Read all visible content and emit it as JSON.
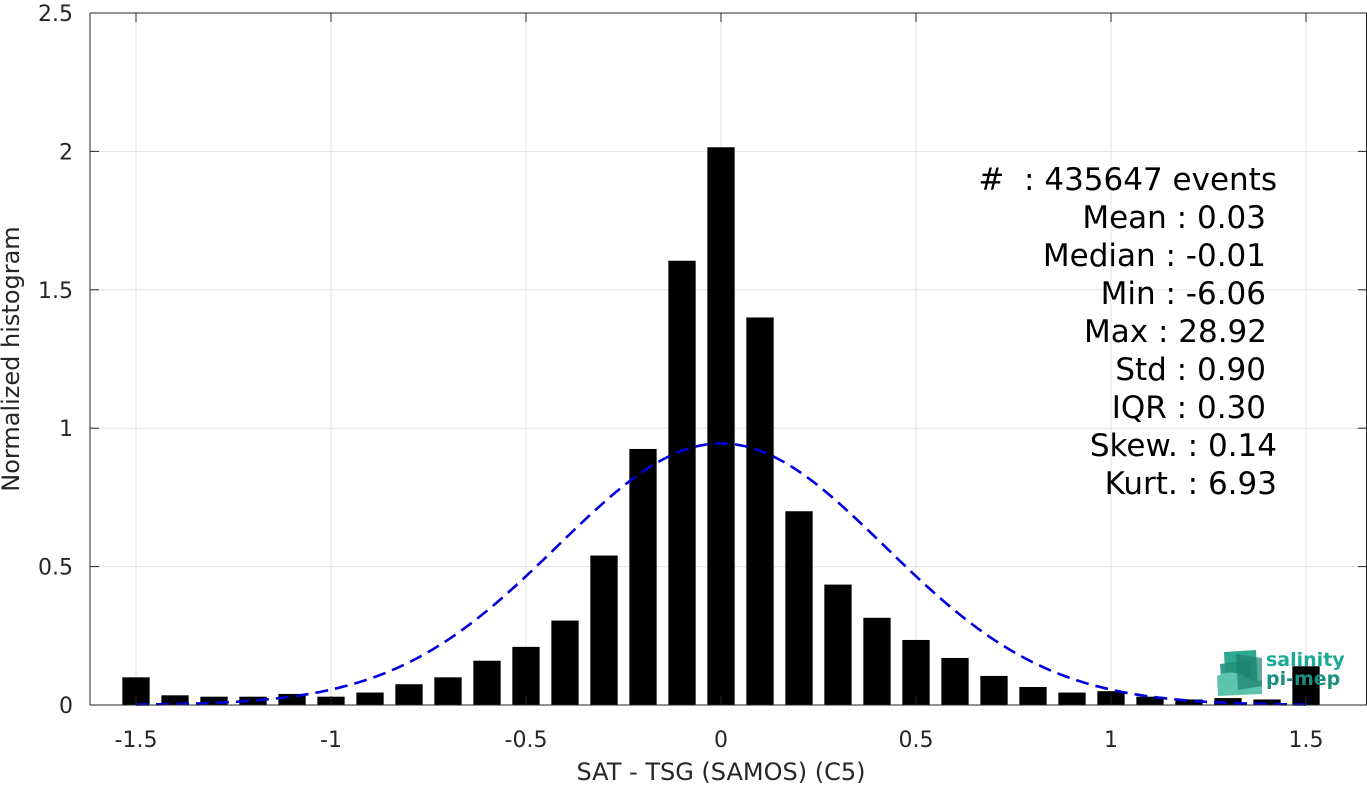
{
  "chart_data": {
    "type": "bar",
    "xlabel": "SAT - TSG (SAMOS) (C5)",
    "ylabel": "Normalized histogram",
    "xlim": [
      -1.55,
      1.55
    ],
    "ylim": [
      0,
      2.5
    ],
    "xticks": [
      "-1.5",
      "-1",
      "-0.5",
      "0",
      "0.5",
      "1",
      "1.5"
    ],
    "yticks": [
      "0",
      "0.5",
      "1",
      "1.5",
      "2",
      "2.5"
    ],
    "grid": true,
    "bar_color": "#000000",
    "bins": [
      -1.5,
      -1.4,
      -1.3,
      -1.2,
      -1.1,
      -1.0,
      -0.9,
      -0.8,
      -0.7,
      -0.6,
      -0.5,
      -0.4,
      -0.3,
      -0.2,
      -0.1,
      0.0,
      0.1,
      0.2,
      0.3,
      0.4,
      0.5,
      0.6,
      0.7,
      0.8,
      0.9,
      1.0,
      1.1,
      1.2,
      1.3,
      1.4,
      1.5
    ],
    "values": [
      0.1,
      0.035,
      0.03,
      0.03,
      0.04,
      0.03,
      0.045,
      0.075,
      0.1,
      0.16,
      0.21,
      0.305,
      0.54,
      0.925,
      1.605,
      2.015,
      1.4,
      0.7,
      0.435,
      0.315,
      0.235,
      0.17,
      0.105,
      0.065,
      0.045,
      0.05,
      0.03,
      0.02,
      0.025,
      0.02,
      0.14
    ],
    "fit": {
      "type": "normal",
      "mean": 0.03,
      "std": 0.9,
      "peak": 0.945,
      "center": 0.0,
      "sigma": 0.42,
      "color": "#0000dd",
      "style": "dashed"
    },
    "annotations": [
      "#  : 435647 events",
      "Mean : 0.03",
      "Median : -0.01",
      "Min : -6.06",
      "Max : 28.92",
      "Std : 0.90",
      "IQR : 0.30",
      "Skew. : 0.14",
      "Kurt. : 6.93"
    ]
  },
  "logo": {
    "line1": "salinity",
    "line2": "pi-mep",
    "color": "#1aaa96"
  }
}
